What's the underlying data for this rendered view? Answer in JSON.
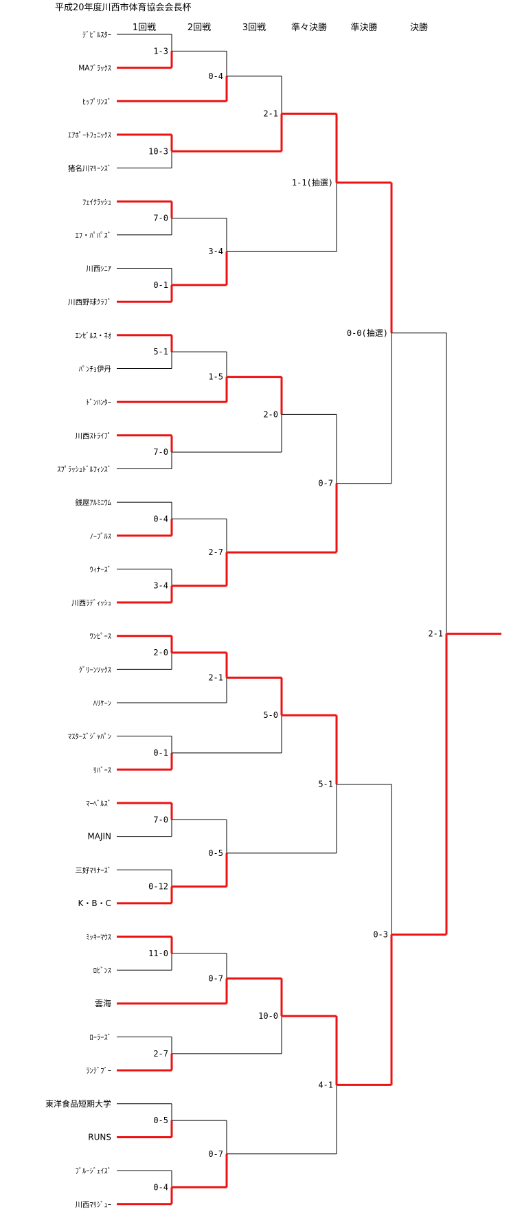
{
  "title": "平成20年度川西市体育協会会長杯",
  "rounds": [
    "1回戦",
    "2回戦",
    "3回戦",
    "準々決勝",
    "準決勝",
    "決勝"
  ],
  "teams": [
    "ﾃﾞﾋﾞﾙｽﾀｰ",
    "MAﾌﾞﾗｯｸｽ",
    "ﾋｯﾌﾟﾘﾝｽﾞ",
    "ｴｱﾎﾟｰﾄﾌｪﾆｯｸｽ",
    "猪名川ﾏﾘｰﾝｽﾞ",
    "ﾌｪｲｸﾗｯｼｭ",
    "ｴﾌ・ﾊﾟﾊﾟｽﾞ",
    "川西ｼﾆｱ",
    "川西野球ｸﾗﾌﾞ",
    "ｴﾝｾﾞﾙｽ・ﾈｵ",
    "ﾊﾟﾝﾁｮ伊丹",
    "ﾄﾞﾝﾊﾝﾀｰ",
    "川西ｽﾄﾗｲﾌﾟ",
    "ｽﾌﾟﾗｯｼｭﾄﾞﾙﾌｨﾝｽﾞ",
    "銭屋ｱﾙﾐﾆｳﾑ",
    "ﾉｰﾌﾞﾙｽ",
    "ｳｨﾅｰｽﾞ",
    "川西ﾗﾃﾞｨｯｼｭ",
    "ﾜﾝﾋﾟｰｽ",
    "ｸﾞﾘｰﾝｿｯｸｽ",
    "ﾊﾘｹｰﾝ",
    "ﾏｽﾀｰｽﾞｼﾞｬﾊﾟﾝ",
    "ﾘﾊﾞｰｽ",
    "ﾏｰﾍﾞﾙｽﾞ",
    "MAJIN",
    "三好ﾏﾘﾅｰｽﾞ",
    "K・B・C",
    "ﾐｯｷｰﾏｳｽ",
    "ﾛﾋﾞﾝｽ",
    "雲海",
    "ﾛｰﾗｰｽﾞ",
    "ﾗﾝﾃﾞﾌﾞｰ",
    "東洋食品短期大学",
    "RUNS",
    "ﾌﾞﾙｰｼﾞｪｲｽﾞ",
    "川西ﾏﾘｼﾞｭｰ"
  ],
  "matches": [
    {
      "id": "r1-a",
      "a": "t0",
      "b": "t1",
      "winner": "b",
      "score": "1-3"
    },
    {
      "id": "r1-b",
      "a": "t9",
      "b": "t10",
      "winner": "a",
      "score": "5-1"
    },
    {
      "id": "r1-c",
      "a": "t18",
      "b": "t19",
      "winner": "a",
      "score": "2-0"
    },
    {
      "id": "r1-d",
      "a": "t27",
      "b": "t28",
      "winner": "a",
      "score": "11-0"
    },
    {
      "id": "r2-1",
      "a": "r1-a",
      "b": "t2",
      "winner": "b",
      "score": "0-4"
    },
    {
      "id": "r2-2",
      "a": "t3",
      "b": "t4",
      "winner": "a",
      "score": "10-3"
    },
    {
      "id": "r2-3",
      "a": "t5",
      "b": "t6",
      "winner": "a",
      "score": "7-0"
    },
    {
      "id": "r2-4",
      "a": "t7",
      "b": "t8",
      "winner": "b",
      "score": "0-1"
    },
    {
      "id": "r2-5",
      "a": "r1-b",
      "b": "t11",
      "winner": "b",
      "score": "1-5"
    },
    {
      "id": "r2-6",
      "a": "t12",
      "b": "t13",
      "winner": "a",
      "score": "7-0"
    },
    {
      "id": "r2-7",
      "a": "t14",
      "b": "t15",
      "winner": "b",
      "score": "0-4"
    },
    {
      "id": "r2-8",
      "a": "t16",
      "b": "t17",
      "winner": "b",
      "score": "3-4"
    },
    {
      "id": "r2-9",
      "a": "r1-c",
      "b": "t20",
      "winner": "a",
      "score": "2-1"
    },
    {
      "id": "r2-10",
      "a": "t21",
      "b": "t22",
      "winner": "b",
      "score": "0-1"
    },
    {
      "id": "r2-11",
      "a": "t23",
      "b": "t24",
      "winner": "a",
      "score": "7-0"
    },
    {
      "id": "r2-12",
      "a": "t25",
      "b": "t26",
      "winner": "b",
      "score": "0-12"
    },
    {
      "id": "r2-13",
      "a": "r1-d",
      "b": "t29",
      "winner": "b",
      "score": "0-7"
    },
    {
      "id": "r2-14",
      "a": "t30",
      "b": "t31",
      "winner": "b",
      "score": "2-7"
    },
    {
      "id": "r2-15",
      "a": "t32",
      "b": "t33",
      "winner": "b",
      "score": "0-5"
    },
    {
      "id": "r2-16",
      "a": "t34",
      "b": "t35",
      "winner": "b",
      "score": "0-4"
    },
    {
      "id": "r3-1",
      "a": "r2-1",
      "b": "r2-2",
      "winner": "b",
      "score": "2-1"
    },
    {
      "id": "r3-2",
      "a": "r2-3",
      "b": "r2-4",
      "winner": "b",
      "score": "3-4"
    },
    {
      "id": "r3-3",
      "a": "r2-5",
      "b": "r2-6",
      "winner": "a",
      "score": "2-0"
    },
    {
      "id": "r3-4",
      "a": "r2-7",
      "b": "r2-8",
      "winner": "b",
      "score": "2-7"
    },
    {
      "id": "r3-5",
      "a": "r2-9",
      "b": "r2-10",
      "winner": "a",
      "score": "5-0"
    },
    {
      "id": "r3-6",
      "a": "r2-11",
      "b": "r2-12",
      "winner": "b",
      "score": "0-5"
    },
    {
      "id": "r3-7",
      "a": "r2-13",
      "b": "r2-14",
      "winner": "a",
      "score": "10-0"
    },
    {
      "id": "r3-8",
      "a": "r2-15",
      "b": "r2-16",
      "winner": "b",
      "score": "0-7"
    },
    {
      "id": "qf-1",
      "a": "r3-1",
      "b": "r3-2",
      "winner": "a",
      "score": "1-1(抽選)"
    },
    {
      "id": "qf-2",
      "a": "r3-3",
      "b": "r3-4",
      "winner": "b",
      "score": "0-7"
    },
    {
      "id": "qf-3",
      "a": "r3-5",
      "b": "r3-6",
      "winner": "a",
      "score": "5-1"
    },
    {
      "id": "qf-4",
      "a": "r3-7",
      "b": "r3-8",
      "winner": "a",
      "score": "4-1"
    },
    {
      "id": "sf-1",
      "a": "qf-1",
      "b": "qf-2",
      "winner": "a",
      "score": "0-0(抽選)"
    },
    {
      "id": "sf-2",
      "a": "qf-3",
      "b": "qf-4",
      "winner": "b",
      "score": "0-3"
    },
    {
      "id": "final",
      "a": "sf-1",
      "b": "sf-2",
      "winner": "b",
      "score": "2-1"
    }
  ],
  "colors": {
    "win": "#ee1111",
    "lose": "#000000"
  }
}
